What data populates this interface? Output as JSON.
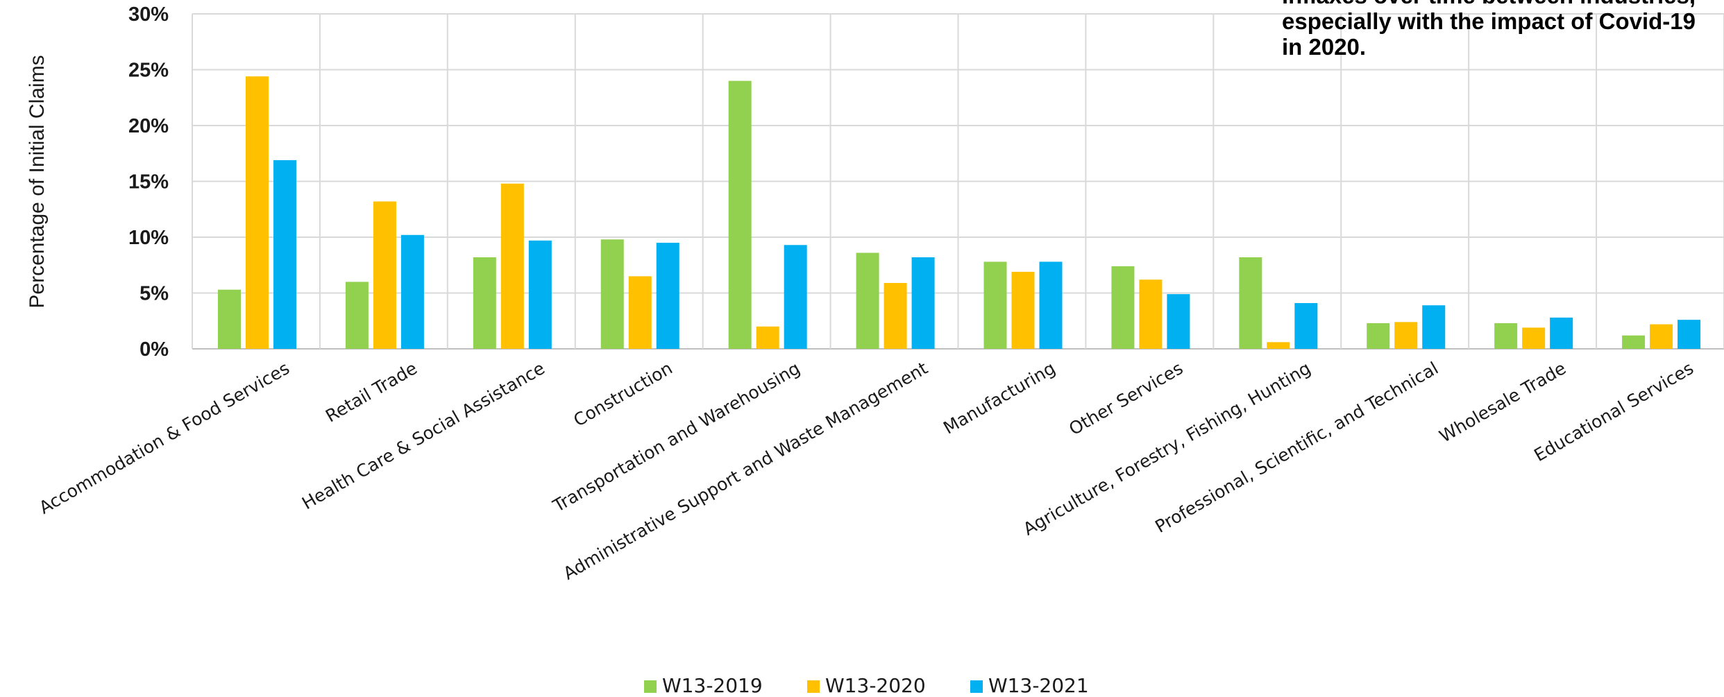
{
  "chart_data": {
    "type": "bar",
    "ylabel": "Percentage of Initial Claims",
    "xlabel": "",
    "ylim": [
      0,
      30
    ],
    "y_ticks": [
      "0%",
      "5%",
      "10%",
      "15%",
      "20%",
      "25%",
      "30%"
    ],
    "grid": true,
    "legend_position": "bottom",
    "categories": [
      "Accommodation & Food Services",
      "Retail Trade",
      "Health Care & Social Assistance",
      "Construction",
      "Transportation and Warehousing",
      "Administrative Support and Waste Management",
      "Manufacturing",
      "Other Services",
      "Agriculture, Forestry, Fishing, Hunting",
      "Professional, Scientific, and Technical",
      "Wholesale Trade",
      "Educational Services"
    ],
    "series": [
      {
        "name": "W13-2019",
        "color": "#92d050",
        "values": [
          5.3,
          6.0,
          8.2,
          9.8,
          24.0,
          8.6,
          7.8,
          7.4,
          8.2,
          2.3,
          2.3,
          1.2
        ]
      },
      {
        "name": "W13-2020",
        "color": "#ffc000",
        "values": [
          24.4,
          13.2,
          14.8,
          6.5,
          2.0,
          5.9,
          6.9,
          6.2,
          0.6,
          2.4,
          1.9,
          2.2
        ]
      },
      {
        "name": "W13-2021",
        "color": "#00b0f0",
        "values": [
          16.9,
          10.2,
          9.7,
          9.5,
          9.3,
          8.2,
          7.8,
          4.9,
          4.1,
          3.9,
          2.8,
          2.6
        ]
      }
    ],
    "annotation": [
      "inflaxes over time between industries,",
      "especially with the impact of Covid-19",
      "in 2020."
    ]
  }
}
